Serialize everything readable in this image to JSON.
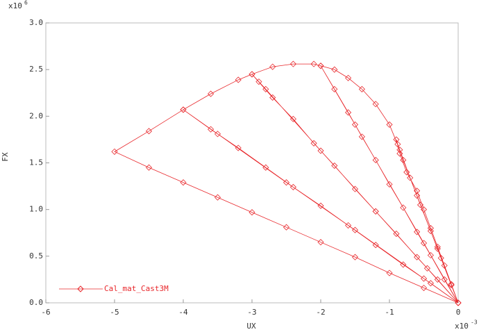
{
  "chart_data": {
    "type": "line",
    "x_label": "UX",
    "y_label": "FX",
    "x_multiplier": {
      "base": "x10",
      "exponent": "-3"
    },
    "y_multiplier": {
      "base": "x10",
      "exponent": "6"
    },
    "xlim": [
      -6,
      0
    ],
    "ylim": [
      0,
      3
    ],
    "xticks": [
      -6,
      -5,
      -4,
      -3,
      -2,
      -1,
      0
    ],
    "yticks": [
      {
        "value": 0,
        "label": "0.0"
      },
      0.5,
      {
        "value": 1,
        "label": "1.0"
      },
      1.5,
      {
        "value": 2,
        "label": "2.0"
      },
      2.5,
      {
        "value": 3,
        "label": "3.0"
      }
    ],
    "grid": false,
    "legend": "lower left",
    "marker": "diamond",
    "x": [
      0,
      -0.5,
      -1,
      -1.5,
      -2,
      -2.5,
      -3,
      -3.5,
      -4,
      -4.5,
      -5,
      -4.5,
      -4,
      -3.6,
      -3.2,
      -2.8,
      -2.4,
      -2,
      -1.6,
      -1.2,
      -0.8,
      -0.4,
      0,
      -0.5,
      -1.5,
      -2.5,
      -3.5,
      -4,
      -3.6,
      -3.2,
      -3,
      -2.7,
      -2.4,
      -2.1,
      -1.8,
      -1.5,
      -1.2,
      -0.9,
      -0.6,
      -0.3,
      0,
      -0.45,
      -1.2,
      -2,
      -2.8,
      -2.9,
      -3,
      -2.7,
      -2.4,
      -2.1,
      -2,
      -1.8,
      -1.6,
      -1.4,
      -1.2,
      -1,
      -0.8,
      -0.6,
      -0.4,
      -0.2,
      0,
      -0.5,
      -1.5,
      -2,
      -1.8,
      -1.6,
      -1.4,
      -1.2,
      -1,
      -0.85,
      -0.7,
      -0.55,
      -0.4,
      -0.25,
      -0.1,
      0,
      -0.3,
      -0.6,
      -0.8,
      -0.88,
      -0.9,
      -0.85,
      -0.75,
      -0.6,
      -0.5,
      -0.4,
      -0.3,
      -0.2,
      -0.1,
      0
    ],
    "series": [
      {
        "name": "Cal_mat_Cast3M",
        "color": "#e8262a",
        "values": [
          0,
          0.16,
          0.32,
          0.49,
          0.65,
          0.81,
          0.97,
          1.13,
          1.29,
          1.45,
          1.62,
          1.84,
          2.07,
          1.86,
          1.66,
          1.45,
          1.24,
          1.04,
          0.83,
          0.62,
          0.41,
          0.21,
          0,
          0.26,
          0.78,
          1.29,
          1.81,
          2.07,
          2.24,
          2.39,
          2.45,
          2.2,
          1.97,
          1.71,
          1.47,
          1.22,
          0.98,
          0.74,
          0.49,
          0.25,
          0,
          0.37,
          0.98,
          1.63,
          2.29,
          2.37,
          2.45,
          2.53,
          2.56,
          2.56,
          2.54,
          2.29,
          2.04,
          1.78,
          1.53,
          1.27,
          1.02,
          0.76,
          0.51,
          0.25,
          0,
          0.64,
          1.91,
          2.54,
          2.5,
          2.41,
          2.29,
          2.13,
          1.91,
          1.64,
          1.34,
          1.05,
          0.77,
          0.48,
          0.19,
          0,
          0.58,
          1.15,
          1.53,
          1.7,
          1.75,
          1.6,
          1.4,
          1.2,
          1.0,
          0.8,
          0.6,
          0.4,
          0.2,
          0
        ]
      }
    ]
  }
}
